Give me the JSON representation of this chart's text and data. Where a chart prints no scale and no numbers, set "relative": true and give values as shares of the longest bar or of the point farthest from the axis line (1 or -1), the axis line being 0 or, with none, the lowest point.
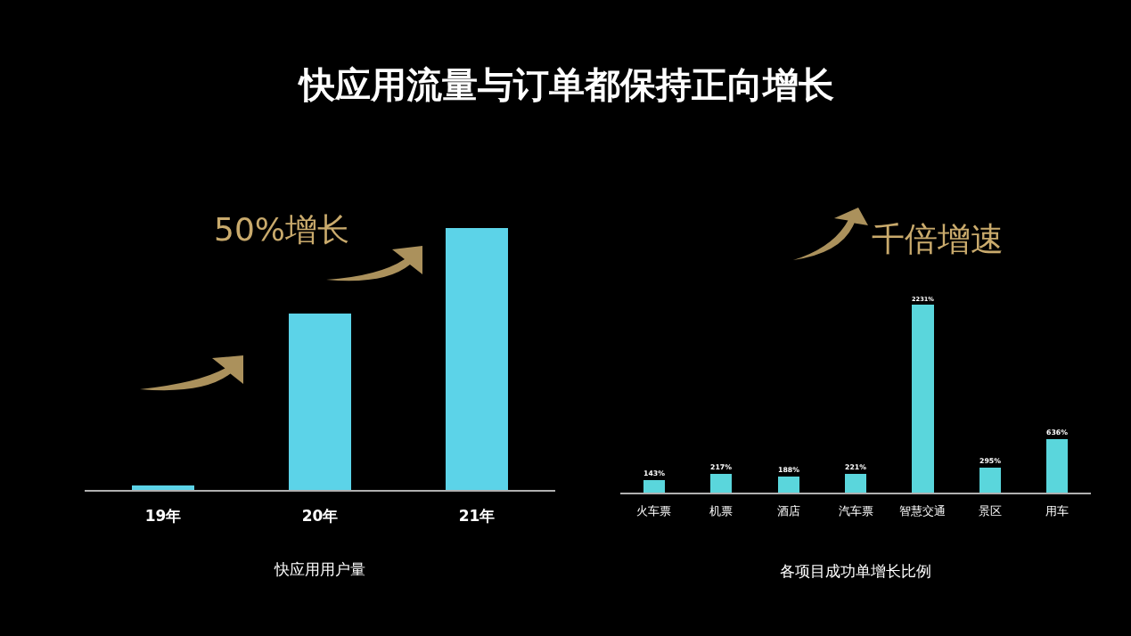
{
  "chart_data": [
    {
      "type": "bar",
      "title": "快应用流量与订单都保持正向增长",
      "categories": [
        "19年",
        "20年",
        "21年"
      ],
      "values": [
        0.017,
        0.673,
        1
      ],
      "relative": true,
      "color": "#5cd3e8",
      "xlabel": "快应用用户量",
      "annotations": [
        "50%增长"
      ]
    },
    {
      "type": "bar",
      "categories": [
        "火车票",
        "机票",
        "酒店",
        "汽车票",
        "智慧交通",
        "景区",
        "用车"
      ],
      "values": [
        143,
        217,
        188,
        221,
        2231,
        295,
        636
      ],
      "value_labels": [
        "143%",
        "217%",
        "188%",
        "221%",
        "2231%",
        "295%",
        "636%"
      ],
      "color": "#5ad6dc",
      "xlabel": "各项目成功单增长比例",
      "annotations": [
        "千倍增速"
      ],
      "tick_labels": "x"
    }
  ]
}
